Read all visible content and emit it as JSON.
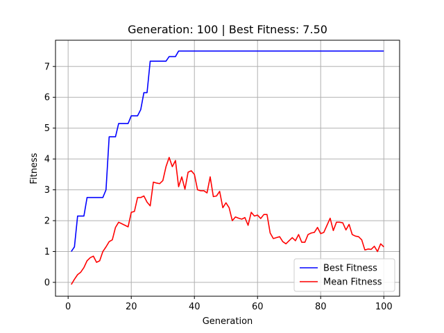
{
  "chart_data": {
    "type": "line",
    "title": "Generation: 100 | Best Fitness: 7.50",
    "xlabel": "Generation",
    "ylabel": "Fitness",
    "xlim": [
      -4,
      105
    ],
    "ylim": [
      -0.45,
      7.85
    ],
    "xticks": [
      0,
      20,
      40,
      60,
      80,
      100
    ],
    "yticks": [
      0,
      1,
      2,
      3,
      4,
      5,
      6,
      7
    ],
    "grid": true,
    "legend_position": "bottom-right",
    "series": [
      {
        "name": "Best Fitness",
        "color": "#0000ff",
        "x": [
          1,
          2,
          3,
          4,
          5,
          6,
          7,
          8,
          9,
          10,
          11,
          12,
          13,
          14,
          15,
          16,
          17,
          18,
          19,
          20,
          21,
          22,
          23,
          24,
          25,
          26,
          27,
          28,
          29,
          30,
          31,
          32,
          33,
          34,
          35,
          36,
          37,
          38,
          39,
          40,
          41,
          42,
          43,
          44,
          45,
          46,
          47,
          48,
          49,
          50,
          51,
          52,
          53,
          54,
          55,
          56,
          57,
          58,
          59,
          60,
          61,
          62,
          63,
          64,
          65,
          66,
          67,
          68,
          69,
          70,
          71,
          72,
          73,
          74,
          75,
          76,
          77,
          78,
          79,
          80,
          81,
          82,
          83,
          84,
          85,
          86,
          87,
          88,
          89,
          90,
          91,
          92,
          93,
          94,
          95,
          96,
          97,
          98,
          99,
          100
        ],
        "y": [
          1.0,
          1.15,
          2.15,
          2.15,
          2.15,
          2.75,
          2.75,
          2.75,
          2.75,
          2.75,
          2.75,
          3.0,
          4.72,
          4.72,
          4.72,
          5.15,
          5.15,
          5.15,
          5.15,
          5.4,
          5.4,
          5.4,
          5.6,
          6.15,
          6.15,
          7.17,
          7.17,
          7.17,
          7.17,
          7.17,
          7.17,
          7.32,
          7.32,
          7.32,
          7.5,
          7.5,
          7.5,
          7.5,
          7.5,
          7.5,
          7.5,
          7.5,
          7.5,
          7.5,
          7.5,
          7.5,
          7.5,
          7.5,
          7.5,
          7.5,
          7.5,
          7.5,
          7.5,
          7.5,
          7.5,
          7.5,
          7.5,
          7.5,
          7.5,
          7.5,
          7.5,
          7.5,
          7.5,
          7.5,
          7.5,
          7.5,
          7.5,
          7.5,
          7.5,
          7.5,
          7.5,
          7.5,
          7.5,
          7.5,
          7.5,
          7.5,
          7.5,
          7.5,
          7.5,
          7.5,
          7.5,
          7.5,
          7.5,
          7.5,
          7.5,
          7.5,
          7.5,
          7.5,
          7.5,
          7.5,
          7.5,
          7.5,
          7.5,
          7.5,
          7.5,
          7.5,
          7.5,
          7.5,
          7.5,
          7.5
        ]
      },
      {
        "name": "Mean Fitness",
        "color": "#ff0000",
        "x": [
          1,
          2,
          3,
          4,
          5,
          6,
          7,
          8,
          9,
          10,
          11,
          12,
          13,
          14,
          15,
          16,
          17,
          18,
          19,
          20,
          21,
          22,
          23,
          24,
          25,
          26,
          27,
          28,
          29,
          30,
          31,
          32,
          33,
          34,
          35,
          36,
          37,
          38,
          39,
          40,
          41,
          42,
          43,
          44,
          45,
          46,
          47,
          48,
          49,
          50,
          51,
          52,
          53,
          54,
          55,
          56,
          57,
          58,
          59,
          60,
          61,
          62,
          63,
          64,
          65,
          66,
          67,
          68,
          69,
          70,
          71,
          72,
          73,
          74,
          75,
          76,
          77,
          78,
          79,
          80,
          81,
          82,
          83,
          84,
          85,
          86,
          87,
          88,
          89,
          90,
          91,
          92,
          93,
          94,
          95,
          96,
          97,
          98,
          99,
          100
        ],
        "y": [
          -0.07,
          0.1,
          0.25,
          0.33,
          0.48,
          0.7,
          0.8,
          0.85,
          0.65,
          0.7,
          1.0,
          1.15,
          1.32,
          1.38,
          1.78,
          1.95,
          1.9,
          1.85,
          1.8,
          2.27,
          2.3,
          2.75,
          2.75,
          2.8,
          2.6,
          2.48,
          3.25,
          3.22,
          3.2,
          3.3,
          3.75,
          4.05,
          3.75,
          3.95,
          3.1,
          3.42,
          3.02,
          3.57,
          3.62,
          3.5,
          3.0,
          2.97,
          2.97,
          2.9,
          3.42,
          2.78,
          2.8,
          2.95,
          2.42,
          2.58,
          2.42,
          2.0,
          2.12,
          2.08,
          2.05,
          2.1,
          1.85,
          2.27,
          2.15,
          2.18,
          2.07,
          2.2,
          2.2,
          1.6,
          1.42,
          1.45,
          1.48,
          1.32,
          1.25,
          1.35,
          1.45,
          1.35,
          1.55,
          1.3,
          1.3,
          1.55,
          1.6,
          1.62,
          1.78,
          1.58,
          1.62,
          1.85,
          2.08,
          1.68,
          1.95,
          1.95,
          1.93,
          1.7,
          1.88,
          1.55,
          1.5,
          1.48,
          1.38,
          1.05,
          1.08,
          1.07,
          1.17,
          1.0,
          1.25,
          1.15
        ]
      }
    ]
  }
}
